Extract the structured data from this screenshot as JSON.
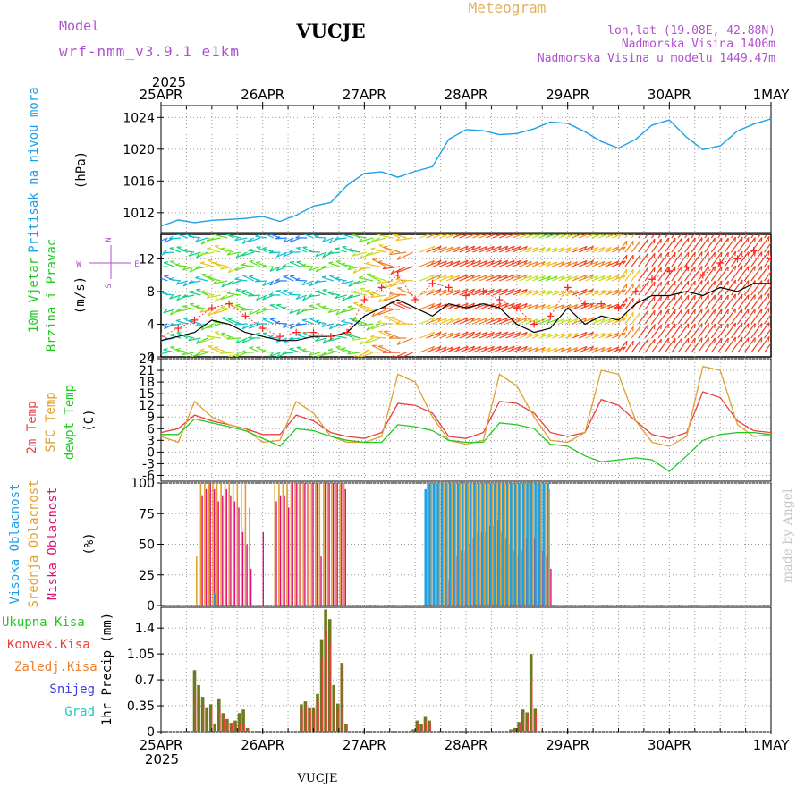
{
  "header": {
    "model_label": "Model",
    "model_name": "wrf-nmm_v3.9.1 e1km",
    "station": "VUCJE",
    "product": "Meteogram",
    "lonlat": "lon,lat (19.08E, 42.88N)",
    "elevation": "Nadmorska Visina 1406m",
    "model_elevation": "Nadmorska Visina u modelu 1449.47m",
    "year_top": "2025",
    "year_bottom": "2025",
    "footer_station": "VUCJE",
    "watermark": "made by Angel"
  },
  "colors": {
    "pressure": "#1ea0e6",
    "temp2m": "#e84040",
    "sfc": "#e0a030",
    "dewpt": "#22c822",
    "high_cloud": "#1ea0e6",
    "mid_cloud": "#e0a030",
    "low_cloud": "#e0107a",
    "total_precip": "#22c822",
    "conv_precip": "#e84040",
    "frz_precip": "#f08030",
    "snow": "#4040e0",
    "hail": "#20c8c8",
    "precip_bar": "#6e7a1e",
    "gust_marker": "#ff2020",
    "wind_speed_line": "#000000",
    "grid": "#9a9a9a",
    "title_purple": "#b050d0"
  },
  "chart_data": [
    {
      "id": "pressure",
      "type": "line",
      "ylabel": "Pritisak na nivou mora",
      "unit": "(hPa)",
      "xticks": [
        "25APR",
        "26APR",
        "27APR",
        "28APR",
        "29APR",
        "30APR",
        "1MAY"
      ],
      "yticks": [
        1012,
        1016,
        1020,
        1024
      ],
      "ylim": [
        1009.5,
        1025.5
      ],
      "x_days": [
        0,
        0.17,
        0.33,
        0.5,
        0.67,
        0.83,
        1,
        1.17,
        1.33,
        1.5,
        1.67,
        1.83,
        2,
        2.17,
        2.33,
        2.5,
        2.67,
        2.83,
        3,
        3.17,
        3.33,
        3.5,
        3.67,
        3.83,
        4,
        4.17,
        4.33,
        4.5,
        4.67,
        4.83,
        5,
        5.17,
        5.33,
        5.5,
        5.67,
        5.83,
        6
      ],
      "values": [
        1010.3,
        1010.9,
        1011.0,
        1010.9,
        1011.1,
        1011.5,
        1011.3,
        1011.0,
        1011.8,
        1012.6,
        1013.5,
        1015.4,
        1016.8,
        1017.4,
        1016.3,
        1017.2,
        1018.0,
        1021.0,
        1022.6,
        1022.4,
        1021.6,
        1022.2,
        1022.5,
        1023.3,
        1023.5,
        1022.0,
        1021.0,
        1020.3,
        1021.0,
        1023.2,
        1023.7,
        1021.3,
        1020.2,
        1020.3,
        1022.2,
        1023.4,
        1023.6
      ]
    },
    {
      "id": "wind",
      "type": "line",
      "ylabel_lines": [
        "10m Vjetar",
        "Brzina i Pravac"
      ],
      "unit": "(m/s)",
      "yticks": [
        0,
        4,
        8,
        12
      ],
      "ylim": [
        0,
        15
      ],
      "compass": {
        "north": "N",
        "south": "S",
        "east": "E",
        "west": "W"
      },
      "x_days": [
        0,
        0.17,
        0.33,
        0.5,
        0.67,
        0.83,
        1,
        1.17,
        1.33,
        1.5,
        1.67,
        1.83,
        2,
        2.17,
        2.33,
        2.5,
        2.67,
        2.83,
        3,
        3.17,
        3.33,
        3.5,
        3.67,
        3.83,
        4,
        4.17,
        4.33,
        4.5,
        4.67,
        4.83,
        5,
        5.17,
        5.33,
        5.5,
        5.67,
        5.83,
        6
      ],
      "speed": [
        2,
        2.5,
        3,
        4.5,
        4,
        3,
        2.5,
        2,
        2,
        2.5,
        2.5,
        3,
        5,
        6,
        7,
        6,
        5,
        6.5,
        6,
        6.5,
        6,
        4,
        3,
        3.5,
        6,
        4,
        5,
        4.5,
        6.5,
        7.5,
        7.5,
        8,
        7.5,
        8.5,
        8,
        9,
        9
      ],
      "gust": [
        2.5,
        3.5,
        4.5,
        6,
        6.5,
        5,
        3.5,
        2.5,
        3,
        3,
        2.5,
        3,
        7,
        8.5,
        10,
        7,
        9,
        8.5,
        7.5,
        8,
        7,
        6,
        4,
        5,
        8.5,
        6.5,
        6.5,
        6,
        8,
        9.5,
        10.5,
        11,
        10,
        11.5,
        12,
        13,
        12
      ]
    },
    {
      "id": "temperature",
      "type": "line",
      "ylabel_lines": [
        "2m Temp",
        "SFC Temp",
        "dewpt Temp"
      ],
      "unit": "(C)",
      "yticks": [
        -6,
        -3,
        0,
        3,
        6,
        9,
        12,
        15,
        18,
        21,
        24
      ],
      "ylim": [
        -7.5,
        24
      ],
      "x_days": [
        0,
        0.17,
        0.33,
        0.5,
        0.67,
        0.83,
        1,
        1.17,
        1.33,
        1.5,
        1.67,
        1.83,
        2,
        2.17,
        2.33,
        2.5,
        2.67,
        2.83,
        3,
        3.17,
        3.33,
        3.5,
        3.67,
        3.83,
        4,
        4.17,
        4.33,
        4.5,
        4.67,
        4.83,
        5,
        5.17,
        5.33,
        5.5,
        5.67,
        5.83,
        6
      ],
      "series": [
        {
          "name": "2m Temp",
          "key": "temp2m",
          "values": [
            5,
            6,
            9.5,
            8,
            7,
            6,
            4.5,
            4.5,
            9.5,
            8,
            5,
            4,
            3.5,
            5,
            12.5,
            12,
            10,
            4,
            3.5,
            5,
            13,
            12.5,
            10,
            5,
            4,
            5,
            13.5,
            12,
            8,
            4.5,
            3.5,
            5,
            15.5,
            14,
            8,
            5.5,
            5
          ]
        },
        {
          "name": "SFC Temp",
          "key": "sfc",
          "values": [
            4,
            2.5,
            13,
            9,
            7,
            6,
            2.5,
            3,
            13,
            10,
            4,
            2.5,
            2.5,
            4,
            20,
            18,
            9,
            3,
            2,
            3,
            20,
            17,
            9,
            3,
            2.5,
            5,
            21,
            20,
            8,
            2.5,
            1.5,
            4,
            22,
            21,
            7,
            4,
            4.5
          ]
        },
        {
          "name": "dewpt Temp",
          "key": "dewpt",
          "values": [
            4.5,
            4.5,
            8.5,
            7.5,
            6.5,
            5.5,
            3.5,
            1.5,
            6,
            5.5,
            4,
            3,
            2.5,
            2.5,
            7,
            6.5,
            5.5,
            3,
            2.5,
            2.5,
            7.5,
            7,
            6,
            2,
            1.5,
            -1,
            -2.5,
            -2,
            -1.5,
            -2,
            -5,
            -1,
            3,
            4.5,
            5,
            5,
            4.5
          ]
        }
      ]
    },
    {
      "id": "cloud",
      "type": "bar",
      "ylabel_lines": [
        "Visoka Oblacnost",
        "Srednja Oblacnost",
        "Niska Oblacnost"
      ],
      "unit": "(%)",
      "yticks": [
        0,
        25,
        50,
        75,
        100
      ],
      "ylim": [
        0,
        100
      ],
      "x_days": [
        0.33,
        0.37,
        0.41,
        0.45,
        0.49,
        0.53,
        0.57,
        0.61,
        0.65,
        0.69,
        0.73,
        0.77,
        0.81,
        0.85,
        0.89,
        0.93,
        0.97,
        1.1,
        1.14,
        1.18,
        1.22,
        1.26,
        1.3,
        1.34,
        1.38,
        1.42,
        1.46,
        1.5,
        1.54,
        1.58,
        1.62,
        1.66,
        1.7,
        1.74,
        1.78,
        2.6,
        2.64,
        2.68,
        2.72,
        2.76,
        2.8,
        2.84,
        2.88,
        2.92,
        2.96,
        3.0,
        3.04,
        3.08,
        3.12,
        3.16,
        3.2,
        3.24,
        3.28,
        3.32,
        3.36,
        3.4,
        3.44,
        3.48,
        3.52,
        3.56,
        3.6,
        3.64,
        3.68,
        3.72,
        3.76,
        3.8
      ],
      "series": [
        {
          "name": "Visoka Oblacnost",
          "key": "high_cloud",
          "values": [
            0,
            0,
            0,
            0,
            0,
            10,
            0,
            0,
            0,
            0,
            0,
            0,
            0,
            0,
            0,
            0,
            0,
            0,
            0,
            0,
            0,
            0,
            0,
            0,
            0,
            0,
            0,
            0,
            0,
            0,
            0,
            0,
            0,
            0,
            0,
            95,
            100,
            100,
            100,
            100,
            100,
            100,
            100,
            100,
            100,
            100,
            100,
            100,
            100,
            100,
            100,
            100,
            100,
            100,
            100,
            100,
            100,
            100,
            100,
            100,
            100,
            100,
            100,
            100,
            100,
            100
          ]
        },
        {
          "name": "Srednja Oblacnost",
          "key": "mid_cloud",
          "values": [
            40,
            100,
            100,
            100,
            100,
            100,
            100,
            100,
            100,
            100,
            100,
            100,
            100,
            80,
            0,
            0,
            0,
            100,
            100,
            100,
            100,
            100,
            100,
            100,
            100,
            100,
            100,
            100,
            100,
            100,
            100,
            100,
            100,
            100,
            100,
            100,
            100,
            100,
            100,
            100,
            100,
            100,
            100,
            100,
            100,
            100,
            100,
            100,
            100,
            100,
            100,
            100,
            100,
            100,
            100,
            100,
            100,
            100,
            100,
            100,
            100,
            100,
            100,
            100,
            100,
            95
          ]
        },
        {
          "name": "Niska Oblacnost",
          "key": "low_cloud",
          "values": [
            0,
            90,
            95,
            100,
            95,
            85,
            90,
            95,
            90,
            85,
            80,
            60,
            50,
            30,
            0,
            0,
            60,
            85,
            90,
            90,
            80,
            100,
            100,
            100,
            100,
            100,
            100,
            100,
            40,
            100,
            100,
            100,
            100,
            100,
            95,
            0,
            0,
            0,
            0,
            0,
            20,
            35,
            40,
            45,
            45,
            50,
            55,
            60,
            60,
            60,
            65,
            65,
            70,
            60,
            55,
            50,
            45,
            40,
            45,
            55,
            60,
            55,
            50,
            45,
            40,
            30
          ]
        }
      ]
    },
    {
      "id": "precip",
      "type": "bar",
      "legend": [
        "Ukupna Kisa",
        "Konvek.Kisa",
        "Zaledj.Kisa",
        "Snijeg",
        "Grad"
      ],
      "ylabel": "1hr Precip (mm)",
      "yticks": [
        0,
        0.35,
        0.7,
        1.05,
        1.4
      ],
      "ytick_labels": [
        "0",
        "0.35",
        "0.7",
        "1.05",
        "1.4"
      ],
      "ylim": [
        0,
        1.68
      ],
      "x_days": [
        0.33,
        0.37,
        0.41,
        0.45,
        0.49,
        0.53,
        0.57,
        0.61,
        0.65,
        0.69,
        0.73,
        0.77,
        0.81,
        0.85,
        1.38,
        1.42,
        1.46,
        1.5,
        1.54,
        1.58,
        1.62,
        1.66,
        1.7,
        1.74,
        1.78,
        1.82,
        2.48,
        2.52,
        2.56,
        2.6,
        2.64,
        3.44,
        3.48,
        3.52,
        3.56,
        3.6,
        3.64,
        3.68
      ],
      "total": [
        0.83,
        0.63,
        0.47,
        0.33,
        0.37,
        0.11,
        0.45,
        0.25,
        0.17,
        0.12,
        0.15,
        0.25,
        0.3,
        0.05,
        0.37,
        0.41,
        0.33,
        0.33,
        0.51,
        1.25,
        1.65,
        1.52,
        0.63,
        0.38,
        0.93,
        0.1,
        0.03,
        0.15,
        0.1,
        0.2,
        0.15,
        0.03,
        0.05,
        0.13,
        0.3,
        0.26,
        1.05,
        0.31
      ],
      "convective": [
        0.55,
        0.45,
        0.35,
        0.28,
        0.3,
        0.08,
        0.3,
        0.2,
        0.12,
        0.1,
        0.08,
        0.1,
        0.12,
        0.03,
        0.3,
        0.35,
        0.3,
        0.28,
        0.4,
        1.0,
        1.35,
        1.2,
        0.5,
        0.3,
        0.9,
        0.08,
        0.02,
        0.12,
        0.08,
        0.15,
        0.12,
        0.02,
        0.04,
        0.1,
        0.25,
        0.2,
        0.7,
        0.25
      ]
    }
  ]
}
